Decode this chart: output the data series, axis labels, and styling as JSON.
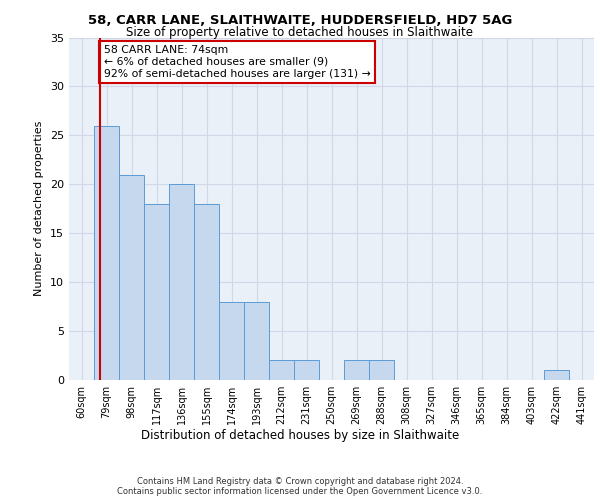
{
  "title1": "58, CARR LANE, SLAITHWAITE, HUDDERSFIELD, HD7 5AG",
  "title2": "Size of property relative to detached houses in Slaithwaite",
  "xlabel": "Distribution of detached houses by size in Slaithwaite",
  "ylabel": "Number of detached properties",
  "bins": [
    "60sqm",
    "79sqm",
    "98sqm",
    "117sqm",
    "136sqm",
    "155sqm",
    "174sqm",
    "193sqm",
    "212sqm",
    "231sqm",
    "250sqm",
    "269sqm",
    "288sqm",
    "308sqm",
    "327sqm",
    "346sqm",
    "365sqm",
    "384sqm",
    "403sqm",
    "422sqm",
    "441sqm"
  ],
  "values": [
    0,
    26,
    21,
    18,
    20,
    18,
    8,
    8,
    2,
    2,
    0,
    2,
    2,
    0,
    0,
    0,
    0,
    0,
    0,
    1,
    0
  ],
  "bar_color": "#c5d8ed",
  "bar_edge_color": "#5b9bd5",
  "bar_width": 1.0,
  "ylim": [
    0,
    35
  ],
  "yticks": [
    0,
    5,
    10,
    15,
    20,
    25,
    30,
    35
  ],
  "annotation_text": "58 CARR LANE: 74sqm\n← 6% of detached houses are smaller (9)\n92% of semi-detached houses are larger (131) →",
  "annotation_box_color": "#ffffff",
  "annotation_box_edge_color": "#cc0000",
  "red_line_color": "#cc0000",
  "grid_color": "#d0d8e8",
  "background_color": "#eaf0f8",
  "footer": "Contains HM Land Registry data © Crown copyright and database right 2024.\nContains public sector information licensed under the Open Government Licence v3.0."
}
